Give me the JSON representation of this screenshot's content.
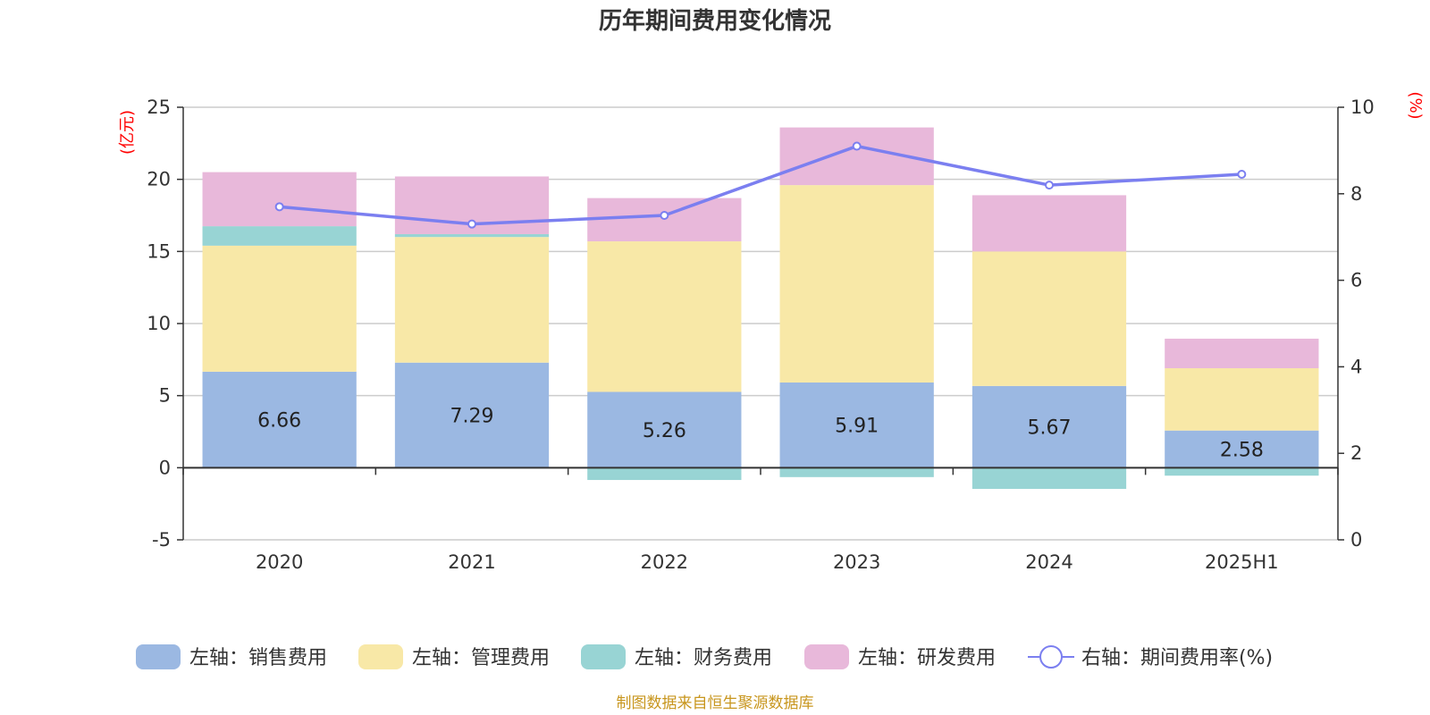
{
  "chart_data": {
    "type": "bar",
    "title": "历年期间费用变化情况",
    "source": "制图数据来自恒生聚源数据库",
    "categories": [
      "2020",
      "2021",
      "2022",
      "2023",
      "2024",
      "2025H1"
    ],
    "y_left": {
      "unit": "(亿元)",
      "ylim": [
        -5,
        25
      ],
      "ticks": [
        "-5",
        "0",
        "5",
        "10",
        "15",
        "20",
        "25"
      ]
    },
    "y_right": {
      "unit": "(%)",
      "ylim": [
        0,
        10
      ],
      "ticks": [
        "0",
        "2",
        "4",
        "6",
        "8",
        "10"
      ]
    },
    "grid": true,
    "legend_position": "bottom",
    "series": [
      {
        "name": "左轴：销售费用",
        "type": "bar",
        "stack": "expense",
        "axis": "left",
        "color": "#9bb8e2",
        "values": [
          6.66,
          7.29,
          5.26,
          5.91,
          5.67,
          2.58
        ],
        "labels": [
          "6.66",
          "7.29",
          "5.26",
          "5.91",
          "5.67",
          "2.58"
        ]
      },
      {
        "name": "左轴：管理费用",
        "type": "bar",
        "stack": "expense",
        "axis": "left",
        "color": "#f8e8a7",
        "values": [
          8.74,
          8.71,
          10.44,
          13.69,
          9.33,
          4.32
        ]
      },
      {
        "name": "左轴：财务费用",
        "type": "bar",
        "stack": "expense",
        "axis": "left",
        "color": "#98d4d4",
        "values": [
          1.35,
          0.2,
          -0.85,
          -0.65,
          -1.47,
          -0.55
        ]
      },
      {
        "name": "左轴：研发费用",
        "type": "bar",
        "stack": "expense",
        "axis": "left",
        "color": "#e8b8da",
        "values": [
          3.75,
          4.0,
          3.0,
          4.0,
          3.9,
          2.05
        ]
      },
      {
        "name": "右轴：期间费用率(%)",
        "type": "line",
        "axis": "right",
        "color": "#7b7ff0",
        "values": [
          7.7,
          7.3,
          7.5,
          9.1,
          8.2,
          8.45
        ]
      }
    ]
  }
}
